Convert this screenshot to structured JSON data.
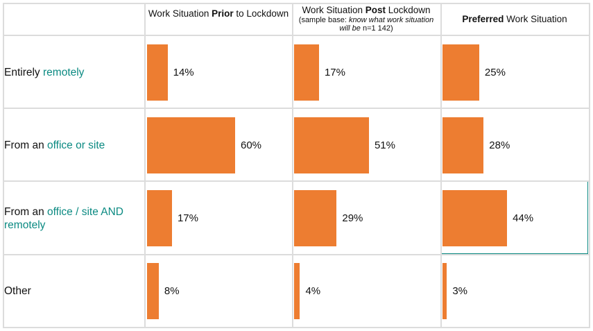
{
  "header": {
    "col1": {
      "pre": "Work Situation ",
      "bold": "Prior",
      "post": " to Lockdown"
    },
    "col2": {
      "pre": "Work Situation ",
      "bold": "Post",
      "post": " Lockdown",
      "note_pre": "(sample base: ",
      "note_italic": "know what work situation will be",
      "note_post": " n=1 142)"
    },
    "col3": {
      "bold": "Preferred",
      "post": " Work Situation"
    }
  },
  "rows": [
    {
      "pre": "Entirely ",
      "accent": "remotely"
    },
    {
      "pre": "From an ",
      "accent": "office or site"
    },
    {
      "pre": "From an ",
      "accent": "office / site AND remotely"
    },
    {
      "pre": "Other",
      "accent": ""
    }
  ],
  "colors": {
    "bar": "#ed7d31",
    "accent_text": "#0b8a82",
    "grid": "#dcdcdc"
  },
  "chart_data": {
    "type": "bar",
    "orientation": "horizontal",
    "categories": [
      "Entirely remotely",
      "From an office or site",
      "From an office / site AND remotely",
      "Other"
    ],
    "series": [
      {
        "name": "Work Situation Prior to Lockdown",
        "values": [
          14,
          60,
          17,
          8
        ]
      },
      {
        "name": "Work Situation Post Lockdown",
        "values": [
          17,
          51,
          29,
          4
        ]
      },
      {
        "name": "Preferred Work Situation",
        "values": [
          25,
          28,
          44,
          3
        ]
      }
    ],
    "value_labels": [
      [
        "14%",
        "60%",
        "17%",
        "8%"
      ],
      [
        "17%",
        "51%",
        "29%",
        "4%"
      ],
      [
        "25%",
        "28%",
        "44%",
        "3%"
      ]
    ],
    "xlim": [
      0,
      100
    ],
    "grid": true
  }
}
